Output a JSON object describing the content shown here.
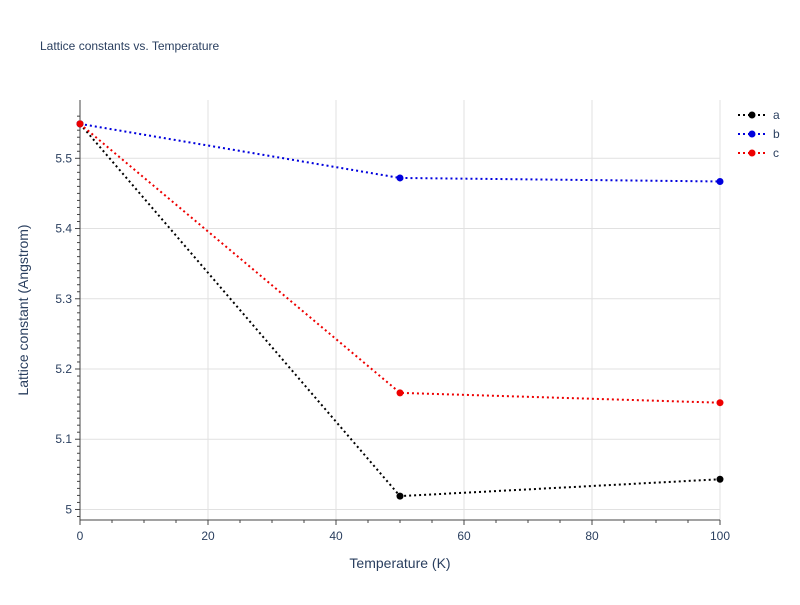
{
  "chart_data": {
    "type": "line",
    "title": "Lattice constants vs. Temperature",
    "xlabel": "Temperature (K)",
    "ylabel": "Lattice constant (Angstrom)",
    "xlim": [
      0,
      100
    ],
    "ylim": [
      4.985,
      5.583
    ],
    "xticks": [
      0,
      20,
      40,
      60,
      80,
      100
    ],
    "yticks": [
      5,
      5.1,
      5.2,
      5.3,
      5.4,
      5.5
    ],
    "xtick_labels": [
      "0",
      "20",
      "40",
      "60",
      "80",
      "100"
    ],
    "ytick_labels": [
      "5",
      "5.1",
      "5.2",
      "5.3",
      "5.4",
      "5.5"
    ],
    "grid": true,
    "legend_position": "top-right",
    "line_style": "dotted",
    "series": [
      {
        "name": "a",
        "color": "#000000",
        "x": [
          0,
          50,
          100
        ],
        "y": [
          5.549,
          5.019,
          5.043
        ]
      },
      {
        "name": "b",
        "color": "#0000dd",
        "x": [
          0,
          50,
          100
        ],
        "y": [
          5.549,
          5.472,
          5.467
        ]
      },
      {
        "name": "c",
        "color": "#ee0000",
        "x": [
          0,
          50,
          100
        ],
        "y": [
          5.549,
          5.166,
          5.152
        ]
      }
    ]
  }
}
